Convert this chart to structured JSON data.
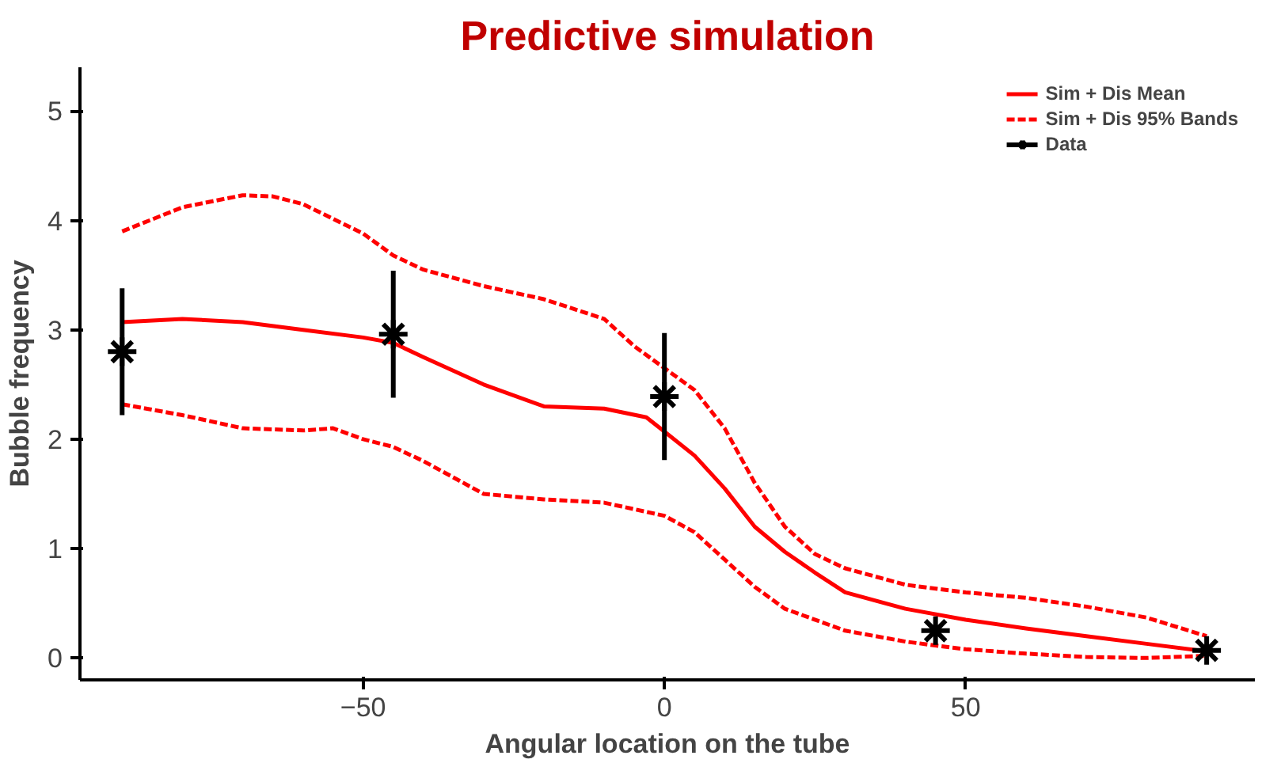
{
  "chart_data": {
    "type": "line",
    "title": "Predictive simulation",
    "xlabel": "Angular location on the tube",
    "ylabel": "Bubble frequency",
    "xlim": [
      -97,
      98
    ],
    "ylim": [
      -0.2,
      5.4
    ],
    "xticks": [
      -50,
      0,
      50
    ],
    "yticks": [
      0,
      1,
      2,
      3,
      4,
      5
    ],
    "grid": false,
    "legend": "top right",
    "series": [
      {
        "name": "Sim + Dis Mean",
        "color": "#ff0000",
        "line_style": "solid",
        "x": [
          -90,
          -80,
          -70,
          -60,
          -50,
          -45,
          -40,
          -30,
          -20,
          -10,
          -3,
          0,
          5,
          10,
          15,
          20,
          25,
          30,
          40,
          50,
          60,
          70,
          80,
          90
        ],
        "values": [
          3.07,
          3.1,
          3.07,
          3.0,
          2.93,
          2.88,
          2.75,
          2.5,
          2.3,
          2.28,
          2.2,
          2.07,
          1.85,
          1.55,
          1.2,
          0.97,
          0.78,
          0.6,
          0.45,
          0.35,
          0.27,
          0.2,
          0.13,
          0.06
        ]
      },
      {
        "name": "Sim + Dis 95% Bands",
        "color": "#ff0000",
        "line_style": "dashed",
        "x": [
          -90,
          -80,
          -70,
          -65,
          -60,
          -50,
          -45,
          -40,
          -30,
          -20,
          -10,
          -5,
          0,
          5,
          10,
          15,
          20,
          25,
          30,
          40,
          50,
          60,
          70,
          80,
          90
        ],
        "values": [
          3.9,
          4.12,
          4.23,
          4.22,
          4.15,
          3.88,
          3.68,
          3.55,
          3.4,
          3.28,
          3.1,
          2.85,
          2.65,
          2.45,
          2.1,
          1.6,
          1.2,
          0.95,
          0.82,
          0.67,
          0.6,
          0.55,
          0.47,
          0.37,
          0.2
        ]
      },
      {
        "color": "#ff0000",
        "line_style": "dashed",
        "x": [
          -90,
          -80,
          -70,
          -60,
          -55,
          -50,
          -45,
          -40,
          -30,
          -20,
          -10,
          0,
          5,
          10,
          15,
          20,
          30,
          40,
          50,
          60,
          70,
          80,
          90
        ],
        "values": [
          2.32,
          2.22,
          2.1,
          2.08,
          2.1,
          2.0,
          1.93,
          1.8,
          1.5,
          1.45,
          1.42,
          1.3,
          1.15,
          0.9,
          0.65,
          0.45,
          0.25,
          0.15,
          0.08,
          0.04,
          0.01,
          0.0,
          0.02
        ]
      },
      {
        "name": "Data",
        "type": "scatter",
        "marker": "cross",
        "color": "#000000",
        "x": [
          -90,
          -45,
          0,
          45,
          90
        ],
        "values": [
          2.8,
          2.96,
          2.39,
          0.25,
          0.07
        ],
        "errors": [
          0.58,
          0.58,
          0.58,
          null,
          null
        ]
      }
    ]
  }
}
